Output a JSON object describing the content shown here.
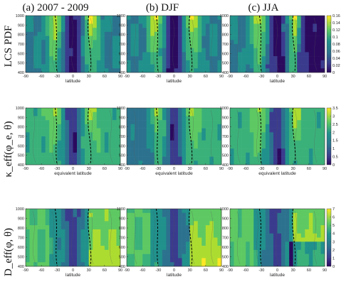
{
  "figure": {
    "col_titles": [
      "(a) 2007 - 2009",
      "(b) DJF",
      "(c) JJA"
    ],
    "row_labels": [
      "LCS PDF",
      "κ_eff(φ_e, θ)",
      "D_eff(φ, θ)"
    ],
    "colors": {
      "low": "#2b0a5e",
      "mid": "#21918c",
      "high": "#fde725",
      "dashed": "#000000",
      "stream": "#555555"
    }
  },
  "chart_data": [
    {
      "type": "heatmap",
      "row": "LCS PDF",
      "colorbar": {
        "range": [
          0,
          0.16
        ],
        "ticks": [
          "0",
          "0.02",
          "0.04",
          "0.06",
          "0.08",
          "0.1",
          "0.12",
          "0.14",
          "0.16"
        ]
      },
      "panels": [
        {
          "title": "(a) 2007 - 2009",
          "xlabel": "latitude",
          "x_ticks": [
            "-90",
            "-60",
            "-30",
            "0",
            "30",
            "60",
            "90"
          ],
          "y_ticks": [
            "400",
            "500",
            "600",
            "700",
            "800",
            "900",
            "1000"
          ],
          "xlim": [
            -90,
            90
          ],
          "ylim": [
            400,
            1000
          ]
        },
        {
          "title": "(b) DJF",
          "xlabel": "latitude",
          "x_ticks": [
            "-90",
            "-60",
            "-30",
            "0",
            "30",
            "60",
            "90"
          ],
          "y_ticks": [
            "400",
            "500",
            "600",
            "700",
            "800",
            "900",
            "1000"
          ],
          "xlim": [
            -90,
            90
          ],
          "ylim": [
            400,
            1000
          ]
        },
        {
          "title": "(c) JJA",
          "xlabel": "latitude",
          "x_ticks": [
            "-90",
            "-60",
            "-30",
            "0",
            "30",
            "60",
            "90"
          ],
          "y_ticks": [
            "400",
            "500",
            "600",
            "700",
            "800",
            "900",
            "1000"
          ],
          "xlim": [
            -90,
            90
          ],
          "ylim": [
            400,
            1000
          ]
        }
      ]
    },
    {
      "type": "heatmap",
      "row": "κ_eff(φ_e, θ)",
      "colorbar": {
        "range": [
          0,
          3.5
        ],
        "ticks": [
          "0",
          "0.5",
          "1",
          "1.5",
          "2",
          "2.5",
          "3",
          "3.5"
        ]
      },
      "panels": [
        {
          "xlabel": "equivalent latitude",
          "x_ticks": [
            "-90",
            "-60",
            "-30",
            "0",
            "30",
            "60",
            "90"
          ],
          "y_ticks": [
            "400",
            "500",
            "600",
            "700",
            "800",
            "900",
            "1000"
          ],
          "xlim": [
            -90,
            90
          ],
          "ylim": [
            400,
            1000
          ]
        },
        {
          "xlabel": "equivalent latitude",
          "x_ticks": [
            "-90",
            "-60",
            "-30",
            "0",
            "30",
            "60",
            "90"
          ],
          "y_ticks": [
            "400",
            "500",
            "600",
            "700",
            "800",
            "900",
            "1000"
          ],
          "xlim": [
            -90,
            90
          ],
          "ylim": [
            400,
            1000
          ]
        },
        {
          "xlabel": "equivalent latitude",
          "x_ticks": [
            "-90",
            "-60",
            "-30",
            "0",
            "30",
            "60",
            "90"
          ],
          "y_ticks": [
            "400",
            "500",
            "600",
            "700",
            "800",
            "900",
            "1000"
          ],
          "xlim": [
            -90,
            90
          ],
          "ylim": [
            400,
            1000
          ]
        }
      ]
    },
    {
      "type": "heatmap",
      "row": "D_eff(φ, θ)",
      "colorbar": {
        "range": [
          0,
          7
        ],
        "ticks": [
          "0",
          "1",
          "2",
          "3",
          "4",
          "5",
          "6",
          "7"
        ]
      },
      "panels": [
        {
          "xlabel": "latitude",
          "x_ticks": [
            "-90",
            "-60",
            "-30",
            "0",
            "30",
            "60",
            "90"
          ],
          "y_ticks": [
            "400",
            "500",
            "600",
            "700",
            "800",
            "900",
            "1000"
          ],
          "xlim": [
            -90,
            90
          ],
          "ylim": [
            400,
            1000
          ]
        },
        {
          "xlabel": "latitude",
          "x_ticks": [
            "-90",
            "-60",
            "-30",
            "0",
            "30",
            "60",
            "90"
          ],
          "y_ticks": [
            "400",
            "500",
            "600",
            "700",
            "800",
            "900",
            "1000"
          ],
          "xlim": [
            -90,
            90
          ],
          "ylim": [
            400,
            1000
          ]
        },
        {
          "xlabel": "latitude",
          "x_ticks": [
            "-90",
            "-60",
            "-30",
            "0",
            "30",
            "60",
            "90"
          ],
          "y_ticks": [
            "400",
            "500",
            "600",
            "700",
            "800",
            "900",
            "1000"
          ],
          "xlim": [
            -90,
            90
          ],
          "ylim": [
            400,
            1000
          ]
        }
      ]
    }
  ]
}
